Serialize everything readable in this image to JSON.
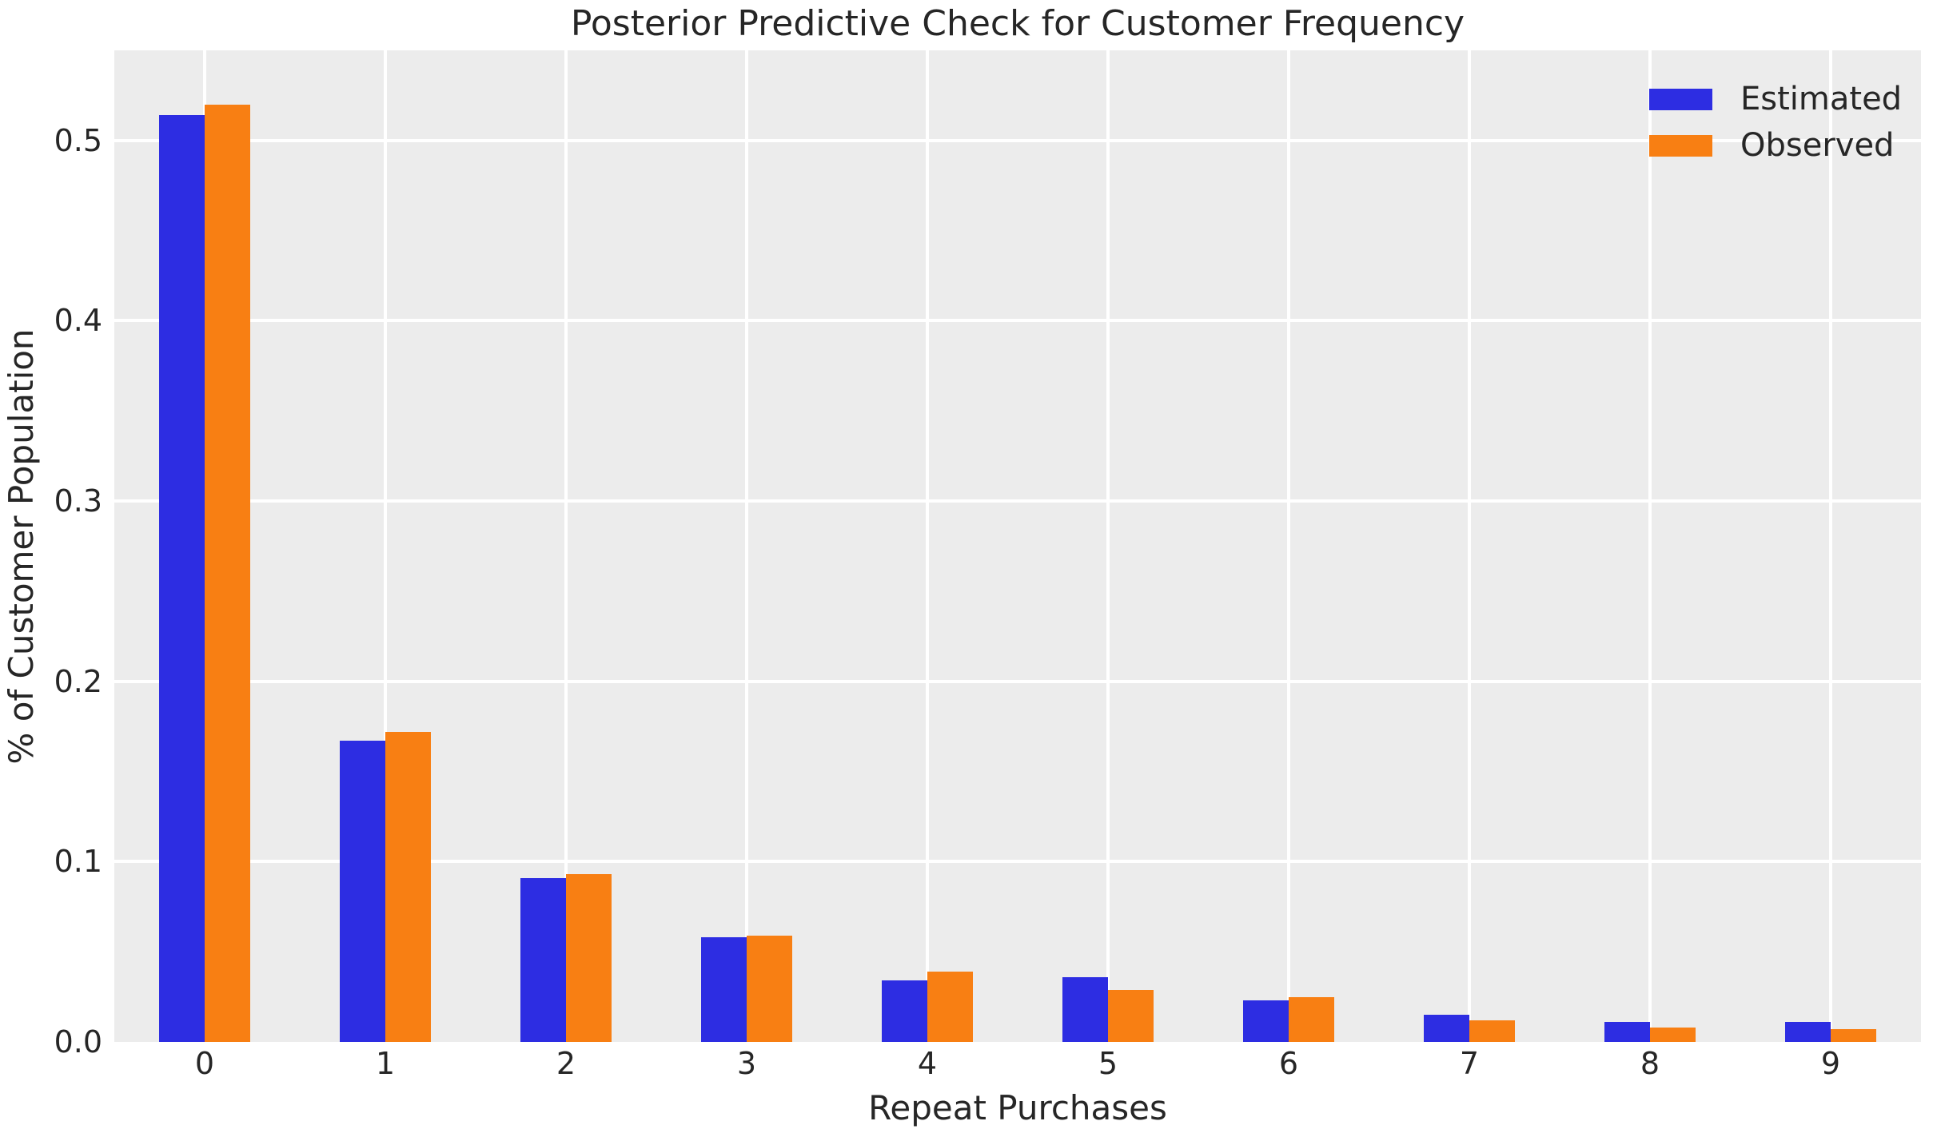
{
  "figure": {
    "background": "#ffffff",
    "plot_background": "#ececec",
    "grid_color": "#ffffff",
    "text_color": "#262626"
  },
  "chart_data": {
    "type": "bar",
    "title": "Posterior Predictive Check for Customer Frequency",
    "xlabel": "Repeat Purchases",
    "ylabel": "% of Customer Population",
    "categories": [
      "0",
      "1",
      "2",
      "3",
      "4",
      "5",
      "6",
      "7",
      "8",
      "9"
    ],
    "series": [
      {
        "name": "Estimated",
        "color": "#2d2de2",
        "values": [
          0.514,
          0.167,
          0.091,
          0.058,
          0.034,
          0.036,
          0.023,
          0.015,
          0.011,
          0.011
        ]
      },
      {
        "name": "Observed",
        "color": "#f87f13",
        "values": [
          0.52,
          0.172,
          0.093,
          0.059,
          0.039,
          0.029,
          0.025,
          0.012,
          0.008,
          0.007
        ]
      }
    ],
    "ylim": [
      0,
      0.55
    ],
    "yticks": [
      0.0,
      0.1,
      0.2,
      0.3,
      0.4,
      0.5
    ],
    "ytick_labels": [
      "0.0",
      "0.1",
      "0.2",
      "0.3",
      "0.4",
      "0.5"
    ],
    "grid": "on",
    "legend_position": "upper right"
  }
}
